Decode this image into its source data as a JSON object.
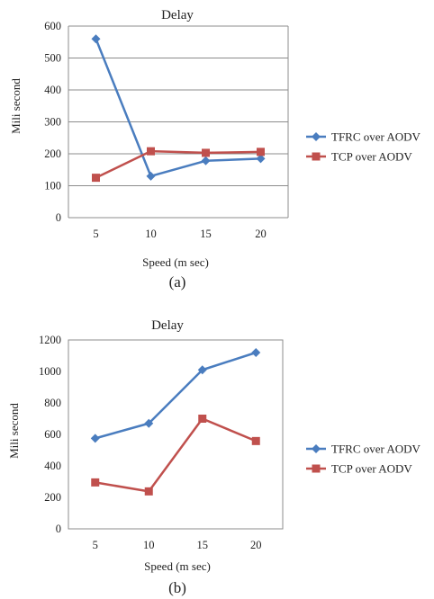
{
  "figures": [
    {
      "caption": "(a)",
      "chart_data": {
        "type": "line",
        "title": "Delay",
        "xlabel": "Speed (m sec)",
        "ylabel": "Mili second",
        "categories": [
          "5",
          "10",
          "15",
          "20"
        ],
        "ylim": [
          0,
          600
        ],
        "yticks": [
          0,
          100,
          200,
          300,
          400,
          500,
          600
        ],
        "grid": true,
        "legend_position": "right",
        "series": [
          {
            "name": "TFRC over AODV",
            "marker": "diamond",
            "color": "#4a7dbf",
            "values": [
              560,
              130,
              178,
              185
            ]
          },
          {
            "name": "TCP over AODV",
            "marker": "square",
            "color": "#c0504d",
            "values": [
              125,
              208,
              203,
              206
            ]
          }
        ]
      }
    },
    {
      "caption": "(b)",
      "chart_data": {
        "type": "line",
        "title": "Delay",
        "xlabel": "Speed (m sec)",
        "ylabel": "Mili second",
        "categories": [
          "5",
          "10",
          "15",
          "20"
        ],
        "ylim": [
          0,
          1200
        ],
        "yticks": [
          0,
          200,
          400,
          600,
          800,
          1000,
          1200
        ],
        "grid": false,
        "legend_position": "right",
        "series": [
          {
            "name": "TFRC over AODV",
            "marker": "diamond",
            "color": "#4a7dbf",
            "values": [
              575,
              670,
              1010,
              1120
            ]
          },
          {
            "name": "TCP over AODV",
            "marker": "square",
            "color": "#c0504d",
            "values": [
              295,
              238,
              700,
              558
            ]
          }
        ]
      }
    }
  ]
}
